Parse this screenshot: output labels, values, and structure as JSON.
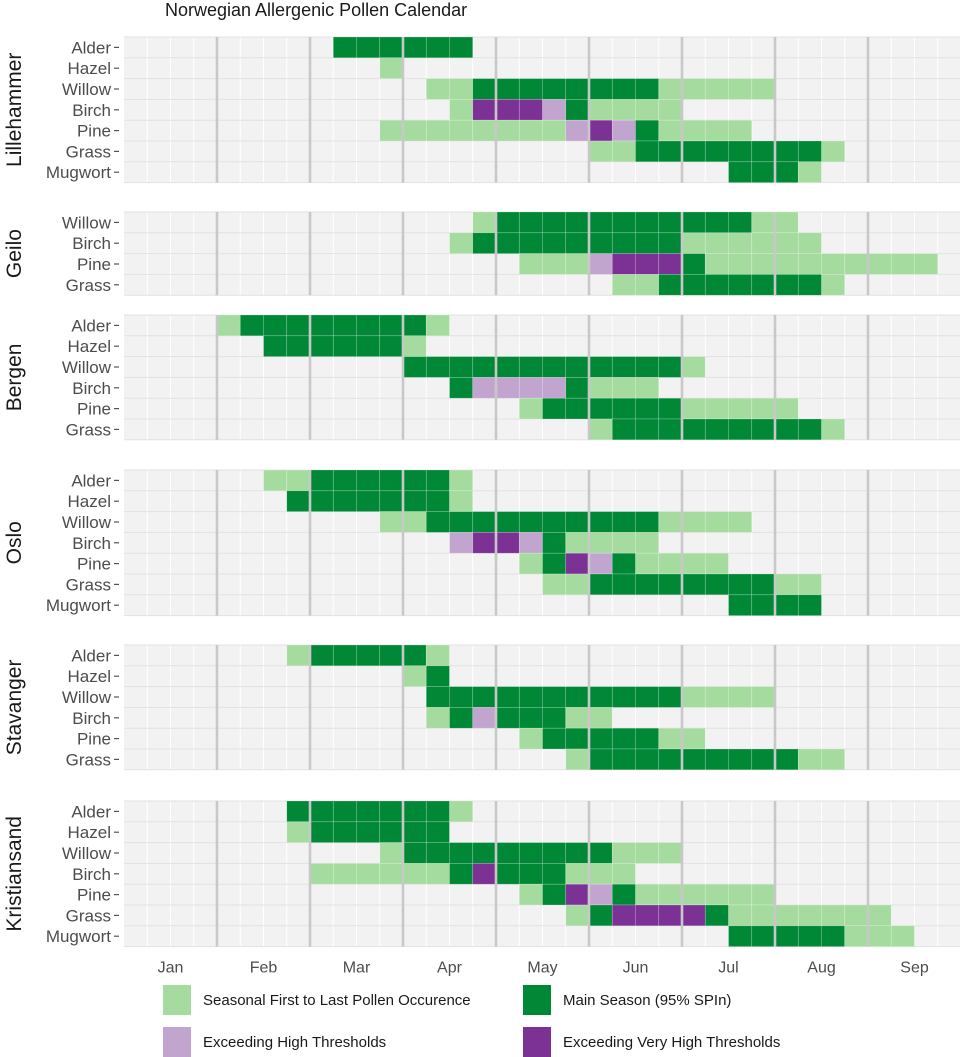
{
  "chart_data": {
    "type": "heatmap",
    "title": "Norwegian Allergenic Pollen Calendar",
    "xlabel": "",
    "ylabel": "",
    "x_unit": "week",
    "weeks_per_month": 4,
    "months": [
      "Jan",
      "Feb",
      "Mar",
      "Apr",
      "May",
      "Jun",
      "Jul",
      "Aug",
      "Sep"
    ],
    "grid": true,
    "legend_position": "bottom",
    "categories": {
      "light": {
        "label": "Seasonal First to Last Pollen Occurence",
        "color": "#a6dba0"
      },
      "main": {
        "label": "Main Season (95% SPIn)",
        "color": "#008837"
      },
      "high": {
        "label": "Exceeding High Thresholds",
        "color": "#c2a5cf"
      },
      "very_high": {
        "label": "Exceeding Very High Thresholds",
        "color": "#7b3294"
      }
    },
    "legend_order": [
      "light",
      "main",
      "high",
      "very_high"
    ],
    "segments_note": "each segment = [first_week_index, last_week_index, category]; week index 0 = Jan week 1",
    "panels": [
      {
        "station": "Lillehammer",
        "taxa": [
          {
            "name": "Alder",
            "segments": [
              [
                9,
                14,
                "main"
              ]
            ]
          },
          {
            "name": "Hazel",
            "segments": [
              [
                11,
                11,
                "light"
              ]
            ]
          },
          {
            "name": "Willow",
            "segments": [
              [
                13,
                14,
                "light"
              ],
              [
                15,
                22,
                "main"
              ],
              [
                23,
                27,
                "light"
              ]
            ]
          },
          {
            "name": "Birch",
            "segments": [
              [
                14,
                14,
                "light"
              ],
              [
                15,
                17,
                "very_high"
              ],
              [
                18,
                18,
                "high"
              ],
              [
                19,
                19,
                "main"
              ],
              [
                20,
                23,
                "light"
              ]
            ]
          },
          {
            "name": "Pine",
            "segments": [
              [
                11,
                18,
                "light"
              ],
              [
                19,
                19,
                "high"
              ],
              [
                20,
                20,
                "very_high"
              ],
              [
                21,
                21,
                "high"
              ],
              [
                22,
                22,
                "main"
              ],
              [
                23,
                26,
                "light"
              ]
            ]
          },
          {
            "name": "Grass",
            "segments": [
              [
                20,
                21,
                "light"
              ],
              [
                22,
                29,
                "main"
              ],
              [
                30,
                30,
                "light"
              ]
            ]
          },
          {
            "name": "Mugwort",
            "segments": [
              [
                26,
                28,
                "main"
              ],
              [
                29,
                29,
                "light"
              ]
            ]
          }
        ]
      },
      {
        "station": "Geilo",
        "taxa": [
          {
            "name": "Willow",
            "segments": [
              [
                15,
                15,
                "light"
              ],
              [
                16,
                26,
                "main"
              ],
              [
                27,
                28,
                "light"
              ]
            ]
          },
          {
            "name": "Birch",
            "segments": [
              [
                14,
                14,
                "light"
              ],
              [
                15,
                23,
                "main"
              ],
              [
                24,
                29,
                "light"
              ]
            ]
          },
          {
            "name": "Pine",
            "segments": [
              [
                17,
                19,
                "light"
              ],
              [
                20,
                20,
                "high"
              ],
              [
                21,
                23,
                "very_high"
              ],
              [
                24,
                24,
                "main"
              ],
              [
                25,
                34,
                "light"
              ]
            ]
          },
          {
            "name": "Grass",
            "segments": [
              [
                21,
                22,
                "light"
              ],
              [
                23,
                29,
                "main"
              ],
              [
                30,
                30,
                "light"
              ]
            ]
          }
        ]
      },
      {
        "station": "Bergen",
        "taxa": [
          {
            "name": "Alder",
            "segments": [
              [
                4,
                4,
                "light"
              ],
              [
                5,
                12,
                "main"
              ],
              [
                13,
                13,
                "light"
              ]
            ]
          },
          {
            "name": "Hazel",
            "segments": [
              [
                6,
                11,
                "main"
              ],
              [
                12,
                12,
                "light"
              ]
            ]
          },
          {
            "name": "Willow",
            "segments": [
              [
                12,
                23,
                "main"
              ],
              [
                24,
                24,
                "light"
              ]
            ]
          },
          {
            "name": "Birch",
            "segments": [
              [
                14,
                14,
                "main"
              ],
              [
                15,
                18,
                "high"
              ],
              [
                19,
                19,
                "main"
              ],
              [
                20,
                22,
                "light"
              ]
            ]
          },
          {
            "name": "Pine",
            "segments": [
              [
                17,
                17,
                "light"
              ],
              [
                18,
                23,
                "main"
              ],
              [
                24,
                28,
                "light"
              ]
            ]
          },
          {
            "name": "Grass",
            "segments": [
              [
                20,
                20,
                "light"
              ],
              [
                21,
                29,
                "main"
              ],
              [
                30,
                30,
                "light"
              ]
            ]
          }
        ]
      },
      {
        "station": "Oslo",
        "taxa": [
          {
            "name": "Alder",
            "segments": [
              [
                6,
                7,
                "light"
              ],
              [
                8,
                13,
                "main"
              ],
              [
                14,
                14,
                "light"
              ]
            ]
          },
          {
            "name": "Hazel",
            "segments": [
              [
                7,
                13,
                "main"
              ],
              [
                14,
                14,
                "light"
              ]
            ]
          },
          {
            "name": "Willow",
            "segments": [
              [
                11,
                12,
                "light"
              ],
              [
                13,
                22,
                "main"
              ],
              [
                23,
                26,
                "light"
              ]
            ]
          },
          {
            "name": "Birch",
            "segments": [
              [
                14,
                14,
                "high"
              ],
              [
                15,
                16,
                "very_high"
              ],
              [
                17,
                17,
                "high"
              ],
              [
                18,
                18,
                "main"
              ],
              [
                19,
                22,
                "light"
              ]
            ]
          },
          {
            "name": "Pine",
            "segments": [
              [
                17,
                17,
                "light"
              ],
              [
                18,
                18,
                "main"
              ],
              [
                19,
                19,
                "very_high"
              ],
              [
                20,
                20,
                "high"
              ],
              [
                21,
                21,
                "main"
              ],
              [
                22,
                25,
                "light"
              ]
            ]
          },
          {
            "name": "Grass",
            "segments": [
              [
                18,
                19,
                "light"
              ],
              [
                20,
                27,
                "main"
              ],
              [
                28,
                29,
                "light"
              ]
            ]
          },
          {
            "name": "Mugwort",
            "segments": [
              [
                26,
                29,
                "main"
              ]
            ]
          }
        ]
      },
      {
        "station": "Stavanger",
        "taxa": [
          {
            "name": "Alder",
            "segments": [
              [
                7,
                7,
                "light"
              ],
              [
                8,
                12,
                "main"
              ],
              [
                13,
                13,
                "light"
              ]
            ]
          },
          {
            "name": "Hazel",
            "segments": [
              [
                12,
                12,
                "light"
              ],
              [
                13,
                13,
                "main"
              ]
            ]
          },
          {
            "name": "Willow",
            "segments": [
              [
                13,
                23,
                "main"
              ],
              [
                24,
                27,
                "light"
              ]
            ]
          },
          {
            "name": "Birch",
            "segments": [
              [
                13,
                13,
                "light"
              ],
              [
                14,
                14,
                "main"
              ],
              [
                15,
                15,
                "high"
              ],
              [
                16,
                18,
                "main"
              ],
              [
                19,
                20,
                "light"
              ]
            ]
          },
          {
            "name": "Pine",
            "segments": [
              [
                17,
                17,
                "light"
              ],
              [
                18,
                22,
                "main"
              ],
              [
                23,
                24,
                "light"
              ]
            ]
          },
          {
            "name": "Grass",
            "segments": [
              [
                19,
                19,
                "light"
              ],
              [
                20,
                28,
                "main"
              ],
              [
                29,
                30,
                "light"
              ]
            ]
          }
        ]
      },
      {
        "station": "Kristiansand",
        "taxa": [
          {
            "name": "Alder",
            "segments": [
              [
                7,
                13,
                "main"
              ],
              [
                14,
                14,
                "light"
              ]
            ]
          },
          {
            "name": "Hazel",
            "segments": [
              [
                7,
                7,
                "light"
              ],
              [
                8,
                13,
                "main"
              ]
            ]
          },
          {
            "name": "Willow",
            "segments": [
              [
                11,
                11,
                "light"
              ],
              [
                12,
                20,
                "main"
              ],
              [
                21,
                23,
                "light"
              ]
            ]
          },
          {
            "name": "Birch",
            "segments": [
              [
                8,
                13,
                "light"
              ],
              [
                14,
                14,
                "main"
              ],
              [
                15,
                15,
                "very_high"
              ],
              [
                16,
                18,
                "main"
              ],
              [
                19,
                21,
                "light"
              ]
            ]
          },
          {
            "name": "Pine",
            "segments": [
              [
                17,
                17,
                "light"
              ],
              [
                18,
                18,
                "main"
              ],
              [
                19,
                19,
                "very_high"
              ],
              [
                20,
                20,
                "high"
              ],
              [
                21,
                21,
                "main"
              ],
              [
                22,
                27,
                "light"
              ]
            ]
          },
          {
            "name": "Grass",
            "segments": [
              [
                19,
                19,
                "light"
              ],
              [
                20,
                20,
                "main"
              ],
              [
                21,
                24,
                "very_high"
              ],
              [
                25,
                25,
                "main"
              ],
              [
                26,
                32,
                "light"
              ]
            ]
          },
          {
            "name": "Mugwort",
            "segments": [
              [
                26,
                30,
                "main"
              ],
              [
                31,
                33,
                "light"
              ]
            ]
          }
        ]
      }
    ]
  }
}
